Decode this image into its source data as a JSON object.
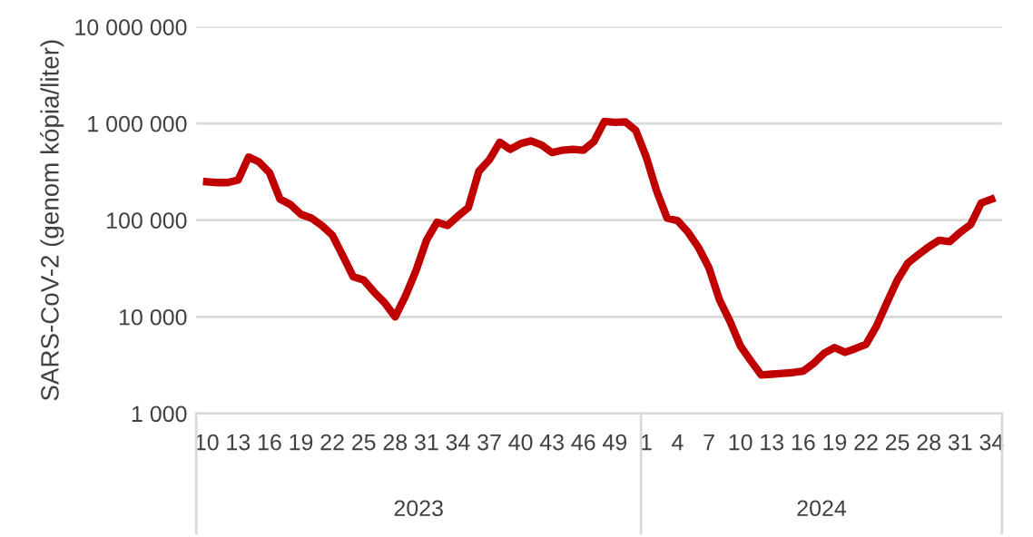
{
  "chart_data": {
    "type": "line",
    "ylabel": "SARS-CoV-2 (genom kópia/liter)",
    "categories": [
      "10",
      null,
      null,
      "13",
      null,
      null,
      "16",
      null,
      null,
      "19",
      null,
      null,
      "22",
      null,
      null,
      "25",
      null,
      null,
      "28",
      null,
      null,
      "31",
      null,
      null,
      "34",
      null,
      null,
      "37",
      null,
      null,
      "40",
      null,
      null,
      "43",
      null,
      null,
      "46",
      null,
      null,
      "49",
      null,
      null,
      "1",
      null,
      null,
      "4",
      null,
      null,
      "7",
      null,
      null,
      "10",
      null,
      null,
      "13",
      null,
      null,
      "16",
      null,
      null,
      "19",
      null,
      null,
      "22",
      null,
      null,
      "25",
      null,
      null,
      "28",
      null,
      null,
      "31",
      null,
      null,
      "34"
    ],
    "series": [
      {
        "color": "#c00000",
        "values": [
          250000,
          245000,
          245000,
          260000,
          450000,
          400000,
          310000,
          165000,
          145000,
          115000,
          105000,
          88000,
          70000,
          43000,
          26000,
          24000,
          18000,
          14000,
          10000,
          16500,
          30000,
          62000,
          95000,
          88000,
          110000,
          135000,
          320000,
          420000,
          640000,
          540000,
          620000,
          660000,
          600000,
          500000,
          530000,
          540000,
          530000,
          650000,
          1050000,
          1030000,
          1040000,
          850000,
          450000,
          200000,
          105000,
          99000,
          75000,
          52000,
          32000,
          15000,
          9000,
          5000,
          3500,
          2500,
          2550,
          2600,
          2650,
          2750,
          3300,
          4200,
          4800,
          4300,
          4700,
          5200,
          8000,
          14000,
          24000,
          36000,
          44000,
          53000,
          62000,
          60000,
          75000,
          90000,
          150000,
          165000
        ]
      }
    ],
    "log": "y",
    "ylim": [
      1000,
      10000000
    ],
    "yticks": [
      {
        "value": 1000,
        "label": "1 000"
      },
      {
        "value": 10000,
        "label": "10 000"
      },
      {
        "value": 100000,
        "label": "100 000"
      },
      {
        "value": 1000000,
        "label": "1 000 000"
      },
      {
        "value": 10000000,
        "label": "10 000 000"
      }
    ],
    "grid": "y",
    "marker": "none",
    "line_style": "solid",
    "annotations": [
      "2023",
      "2024"
    ]
  }
}
